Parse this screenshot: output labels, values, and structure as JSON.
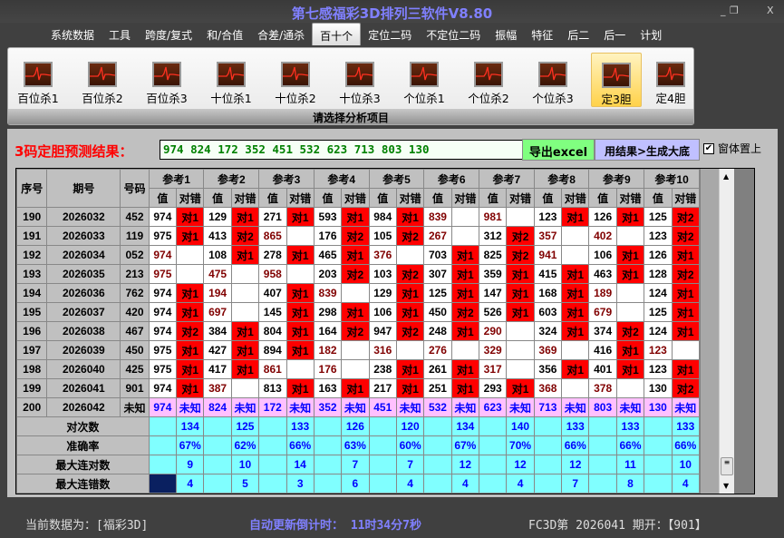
{
  "window": {
    "title": "第七感福彩3D排列三软件V8.80",
    "minimize": "_",
    "restore": "❐",
    "close": "X"
  },
  "menu": [
    "系统数据",
    "工具",
    "跨度/复式",
    "和/合值",
    "合差/通杀",
    "百十个",
    "定位二码",
    "不定位二码",
    "振幅",
    "特征",
    "后二",
    "后一",
    "计划"
  ],
  "menu_active": 5,
  "ribbon": {
    "items": [
      "百位杀1",
      "百位杀2",
      "百位杀3",
      "十位杀1",
      "十位杀2",
      "十位杀3",
      "个位杀1",
      "个位杀2",
      "个位杀3",
      "定3胆",
      "定4胆"
    ],
    "active": 9,
    "icon": "ecg-monitor-icon",
    "footer": "请选择分析项目"
  },
  "result": {
    "label": "3码定胆预测结果：",
    "value": "974 824 172 352 451 532 623 713 803 130",
    "export": "导出excel",
    "generate": "用结果>生成大底",
    "ontop": "窗体置上",
    "ontop_checked": true
  },
  "table": {
    "headers": {
      "seq": "序号",
      "issue": "期号",
      "code": "号码",
      "refs": [
        "参考1",
        "参考2",
        "参考3",
        "参考4",
        "参考5",
        "参考6",
        "参考7",
        "参考8",
        "参考9",
        "参考10"
      ],
      "val": "值",
      "flag": "对错"
    },
    "rows": [
      {
        "seq": "190",
        "issue": "2026032",
        "code": "452",
        "cells": [
          [
            "974",
            "对1"
          ],
          [
            "129",
            "对1"
          ],
          [
            "271",
            "对1"
          ],
          [
            "593",
            "对1"
          ],
          [
            "984",
            "对1"
          ],
          [
            "839",
            ""
          ],
          [
            "981",
            ""
          ],
          [
            "123",
            "对1"
          ],
          [
            "126",
            "对1"
          ],
          [
            "125",
            "对2"
          ]
        ]
      },
      {
        "seq": "191",
        "issue": "2026033",
        "code": "119",
        "cells": [
          [
            "975",
            "对1"
          ],
          [
            "413",
            "对2"
          ],
          [
            "865",
            ""
          ],
          [
            "176",
            "对2"
          ],
          [
            "105",
            "对2"
          ],
          [
            "267",
            ""
          ],
          [
            "312",
            "对2"
          ],
          [
            "357",
            ""
          ],
          [
            "402",
            ""
          ],
          [
            "123",
            "对2"
          ]
        ]
      },
      {
        "seq": "192",
        "issue": "2026034",
        "code": "052",
        "cells": [
          [
            "974",
            ""
          ],
          [
            "108",
            "对1"
          ],
          [
            "278",
            "对1"
          ],
          [
            "465",
            "对1"
          ],
          [
            "376",
            ""
          ],
          [
            "703",
            "对1"
          ],
          [
            "825",
            "对2"
          ],
          [
            "941",
            ""
          ],
          [
            "106",
            "对1"
          ],
          [
            "126",
            "对1"
          ]
        ]
      },
      {
        "seq": "193",
        "issue": "2026035",
        "code": "213",
        "cells": [
          [
            "975",
            ""
          ],
          [
            "475",
            ""
          ],
          [
            "958",
            ""
          ],
          [
            "203",
            "对2"
          ],
          [
            "103",
            "对2"
          ],
          [
            "307",
            "对1"
          ],
          [
            "359",
            "对1"
          ],
          [
            "415",
            "对1"
          ],
          [
            "463",
            "对1"
          ],
          [
            "128",
            "对2"
          ]
        ]
      },
      {
        "seq": "194",
        "issue": "2026036",
        "code": "762",
        "cells": [
          [
            "974",
            "对1"
          ],
          [
            "194",
            ""
          ],
          [
            "407",
            "对1"
          ],
          [
            "839",
            ""
          ],
          [
            "129",
            "对1"
          ],
          [
            "125",
            "对1"
          ],
          [
            "147",
            "对1"
          ],
          [
            "168",
            "对1"
          ],
          [
            "189",
            ""
          ],
          [
            "124",
            "对1"
          ]
        ]
      },
      {
        "seq": "195",
        "issue": "2026037",
        "code": "420",
        "cells": [
          [
            "974",
            "对1"
          ],
          [
            "697",
            ""
          ],
          [
            "145",
            "对1"
          ],
          [
            "298",
            "对1"
          ],
          [
            "106",
            "对1"
          ],
          [
            "450",
            "对2"
          ],
          [
            "526",
            "对1"
          ],
          [
            "603",
            "对1"
          ],
          [
            "679",
            ""
          ],
          [
            "125",
            "对1"
          ]
        ]
      },
      {
        "seq": "196",
        "issue": "2026038",
        "code": "467",
        "cells": [
          [
            "974",
            "对2"
          ],
          [
            "384",
            "对1"
          ],
          [
            "804",
            "对1"
          ],
          [
            "164",
            "对2"
          ],
          [
            "947",
            "对2"
          ],
          [
            "248",
            "对1"
          ],
          [
            "290",
            ""
          ],
          [
            "324",
            "对1"
          ],
          [
            "374",
            "对2"
          ],
          [
            "124",
            "对1"
          ]
        ]
      },
      {
        "seq": "197",
        "issue": "2026039",
        "code": "450",
        "cells": [
          [
            "975",
            "对1"
          ],
          [
            "427",
            "对1"
          ],
          [
            "894",
            "对1"
          ],
          [
            "182",
            ""
          ],
          [
            "316",
            ""
          ],
          [
            "276",
            ""
          ],
          [
            "329",
            ""
          ],
          [
            "369",
            ""
          ],
          [
            "416",
            "对1"
          ],
          [
            "123",
            ""
          ]
        ]
      },
      {
        "seq": "198",
        "issue": "2026040",
        "code": "425",
        "cells": [
          [
            "975",
            "对1"
          ],
          [
            "417",
            "对1"
          ],
          [
            "861",
            ""
          ],
          [
            "176",
            ""
          ],
          [
            "238",
            "对1"
          ],
          [
            "261",
            "对1"
          ],
          [
            "317",
            ""
          ],
          [
            "356",
            "对1"
          ],
          [
            "401",
            "对1"
          ],
          [
            "123",
            "对1"
          ]
        ]
      },
      {
        "seq": "199",
        "issue": "2026041",
        "code": "901",
        "cells": [
          [
            "974",
            "对1"
          ],
          [
            "387",
            ""
          ],
          [
            "813",
            "对1"
          ],
          [
            "163",
            "对1"
          ],
          [
            "217",
            "对1"
          ],
          [
            "251",
            "对1"
          ],
          [
            "293",
            "对1"
          ],
          [
            "368",
            ""
          ],
          [
            "378",
            ""
          ],
          [
            "130",
            "对2"
          ]
        ]
      }
    ],
    "prediction": {
      "seq": "200",
      "issue": "2026042",
      "code": "未知",
      "values": [
        "974",
        "824",
        "172",
        "352",
        "451",
        "532",
        "623",
        "713",
        "803",
        "130"
      ],
      "flag": "未知"
    },
    "summary": [
      {
        "label": "对次数",
        "values": [
          "134",
          "125",
          "133",
          "126",
          "120",
          "134",
          "140",
          "133",
          "133",
          "133"
        ]
      },
      {
        "label": "准确率",
        "values": [
          "67%",
          "62%",
          "66%",
          "63%",
          "60%",
          "67%",
          "70%",
          "66%",
          "66%",
          "66%"
        ]
      },
      {
        "label": "最大连对数",
        "values": [
          "9",
          "10",
          "14",
          "7",
          "7",
          "12",
          "12",
          "12",
          "11",
          "10"
        ]
      },
      {
        "label": "最大连错数",
        "values": [
          "4",
          "5",
          "3",
          "6",
          "4",
          "4",
          "4",
          "7",
          "8",
          "4"
        ]
      }
    ]
  },
  "status": {
    "data_source": "当前数据为：[福彩3D]",
    "countdown": "自动更新倒计时： 11时34分7秒",
    "last_draw": "FC3D第 2026041 期开：【901】"
  }
}
